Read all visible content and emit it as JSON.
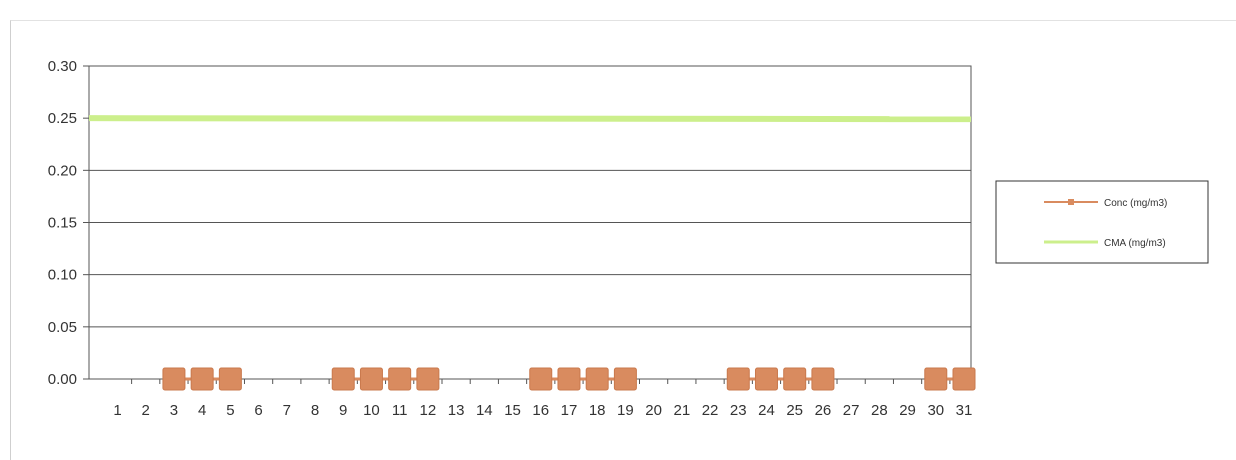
{
  "chart_data": {
    "type": "line",
    "title": "",
    "xlabel": "",
    "ylabel": "",
    "x": [
      1,
      2,
      3,
      4,
      5,
      6,
      7,
      8,
      9,
      10,
      11,
      12,
      13,
      14,
      15,
      16,
      17,
      18,
      19,
      20,
      21,
      22,
      23,
      24,
      25,
      26,
      27,
      28,
      29,
      30,
      31
    ],
    "x_tick_labels": [
      "1",
      "2",
      "3",
      "4",
      "5",
      "6",
      "7",
      "8",
      "9",
      "10",
      "11",
      "12",
      "13",
      "14",
      "15",
      "16",
      "17",
      "18",
      "19",
      "20",
      "21",
      "22",
      "23",
      "24",
      "25",
      "26",
      "27",
      "28",
      "29",
      "30",
      "31"
    ],
    "y_tick_labels": [
      "0.00",
      "0.05",
      "0.10",
      "0.15",
      "0.20",
      "0.25",
      "0.30"
    ],
    "ylim": [
      0,
      0.3
    ],
    "grid": "horizontal",
    "legend_position": "right",
    "series": [
      {
        "name": "Conc (mg/m3)",
        "color": "#d98b5f",
        "marker": "square",
        "points": [
          [
            3,
            0
          ],
          [
            4,
            0
          ],
          [
            5,
            0
          ],
          [
            9,
            0
          ],
          [
            10,
            0
          ],
          [
            11,
            0
          ],
          [
            12,
            0
          ],
          [
            16,
            0
          ],
          [
            17,
            0
          ],
          [
            18,
            0
          ],
          [
            19,
            0
          ],
          [
            23,
            0
          ],
          [
            24,
            0
          ],
          [
            25,
            0
          ],
          [
            26,
            0
          ],
          [
            30,
            0
          ],
          [
            31,
            0
          ]
        ]
      },
      {
        "name": "CMA (mg/m3)",
        "color": "#ccef8c",
        "marker": "none",
        "points": [
          [
            1,
            0.25
          ],
          [
            31,
            0.25
          ]
        ]
      }
    ]
  }
}
